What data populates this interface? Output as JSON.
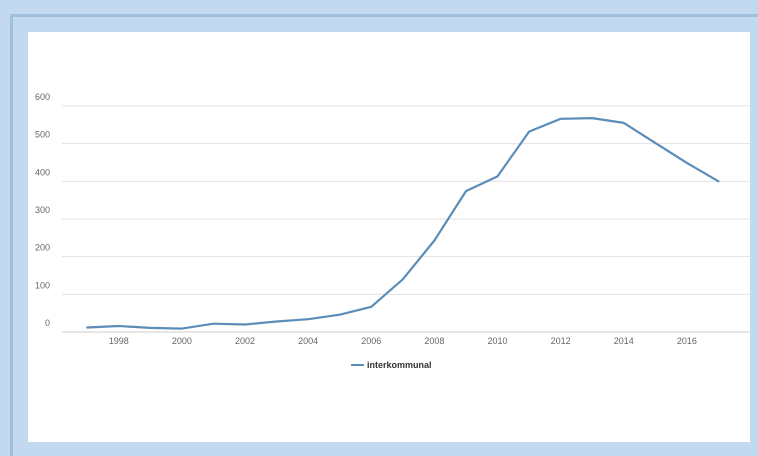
{
  "chart_data": {
    "type": "line",
    "title": "",
    "xlabel": "",
    "ylabel": "",
    "x": [
      1997,
      1998,
      1999,
      2000,
      2001,
      2002,
      2003,
      2004,
      2005,
      2006,
      2007,
      2008,
      2009,
      2010,
      2011,
      2012,
      2013,
      2014,
      2015,
      2016,
      2017
    ],
    "series": [
      {
        "name": "interkommunal",
        "color": "#5b8db8",
        "values": [
          12,
          16,
          11,
          9,
          22,
          20,
          28,
          34,
          46,
          67,
          140,
          243,
          374,
          413,
          532,
          566,
          568,
          555,
          502,
          449,
          400
        ]
      }
    ],
    "ylim": [
      0,
      600
    ],
    "yticks": [
      "0",
      "100",
      "200",
      "300",
      "400",
      "500",
      "600"
    ],
    "xlim": [
      1996.2,
      2018
    ],
    "xticks": [
      "1998",
      "2000",
      "2002",
      "2004",
      "2006",
      "2008",
      "2010",
      "2012",
      "2014",
      "2016"
    ],
    "grid": true,
    "legend_position": "bottom"
  }
}
